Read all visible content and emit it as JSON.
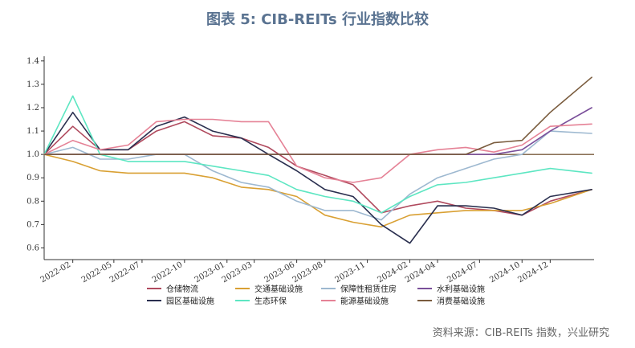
{
  "title": "图表 5:  CIB-REITs 行业指数比较",
  "source": "资料来源：CIB-REITs 指数，兴业研究",
  "chart_data": {
    "type": "line",
    "title": "图表 5:  CIB-REITs 行业指数比较",
    "xlabel": "",
    "ylabel": "",
    "ylim": [
      0.55,
      1.42
    ],
    "yticks": [
      "0.6",
      "0.7",
      "0.8",
      "0.9",
      "1.0",
      "1.1",
      "1.2",
      "1.3",
      "1.4"
    ],
    "xlim": [
      "2021-12-01",
      "2025-03-06"
    ],
    "xticks": [
      "2022-02",
      "2022-05",
      "2022-07",
      "2022-10",
      "2023-01",
      "2023-03",
      "2023-06",
      "2023-08",
      "2023-11",
      "2024-02",
      "2024-04",
      "2024-07",
      "2024-10",
      "2024-12"
    ],
    "grid": false,
    "legend_position": "bottom",
    "x": [
      "2021-12-01",
      "2022-02-01",
      "2022-04-01",
      "2022-06-01",
      "2022-08-01",
      "2022-10-01",
      "2022-12-01",
      "2023-02-01",
      "2023-04-01",
      "2023-06-01",
      "2023-08-01",
      "2023-10-01",
      "2023-12-01",
      "2024-02-01",
      "2024-04-01",
      "2024-06-01",
      "2024-08-01",
      "2024-10-01",
      "2024-12-01",
      "2025-03-01"
    ],
    "series": [
      {
        "name": "仓储物流",
        "color": "#b04a5e",
        "values": [
          1.0,
          1.12,
          1.02,
          1.02,
          1.1,
          1.14,
          1.08,
          1.07,
          1.03,
          0.95,
          0.91,
          0.87,
          0.75,
          0.78,
          0.8,
          0.77,
          0.76,
          0.74,
          0.8,
          0.85
        ]
      },
      {
        "name": "交通基础设施",
        "color": "#d9a033",
        "values": [
          1.0,
          0.97,
          0.93,
          0.92,
          0.92,
          0.92,
          0.9,
          0.86,
          0.85,
          0.82,
          0.74,
          0.71,
          0.69,
          0.74,
          0.75,
          0.76,
          0.76,
          0.76,
          0.79,
          0.85
        ]
      },
      {
        "name": "保障性租赁住房",
        "color": "#9db8d0",
        "values": [
          1.0,
          1.03,
          0.98,
          0.98,
          1.0,
          1.0,
          0.93,
          0.88,
          0.86,
          0.8,
          0.76,
          0.76,
          0.72,
          0.83,
          0.9,
          0.94,
          0.98,
          1.0,
          1.1,
          1.09
        ]
      },
      {
        "name": "水利基础设施",
        "color": "#7a4f9a",
        "values": [
          1.0,
          1.0,
          1.0,
          1.0,
          1.0,
          1.0,
          1.0,
          1.0,
          1.0,
          1.0,
          1.0,
          1.0,
          1.0,
          1.0,
          1.0,
          1.0,
          1.0,
          1.02,
          1.1,
          1.2
        ]
      },
      {
        "name": "园区基础设施",
        "color": "#2a2f4f",
        "values": [
          1.0,
          1.18,
          1.02,
          1.02,
          1.12,
          1.16,
          1.1,
          1.07,
          1.0,
          0.93,
          0.85,
          0.82,
          0.7,
          0.62,
          0.78,
          0.78,
          0.77,
          0.74,
          0.82,
          0.85
        ]
      },
      {
        "name": "生态环保",
        "color": "#5de6c2",
        "values": [
          1.0,
          1.25,
          1.0,
          0.97,
          0.97,
          0.97,
          0.95,
          0.93,
          0.91,
          0.85,
          0.82,
          0.8,
          0.75,
          0.82,
          0.87,
          0.88,
          0.9,
          0.92,
          0.94,
          0.92
        ]
      },
      {
        "name": "能源基础设施",
        "color": "#e58296",
        "values": [
          1.0,
          1.06,
          1.02,
          1.04,
          1.14,
          1.15,
          1.15,
          1.14,
          1.14,
          0.95,
          0.9,
          0.88,
          0.9,
          1.0,
          1.02,
          1.03,
          1.01,
          1.04,
          1.12,
          1.13
        ]
      },
      {
        "name": "消费基础设施",
        "color": "#7a5c3e",
        "values": [
          1.0,
          1.0,
          1.0,
          1.0,
          1.0,
          1.0,
          1.0,
          1.0,
          1.0,
          1.0,
          1.0,
          1.0,
          1.0,
          1.0,
          1.0,
          1.0,
          1.05,
          1.06,
          1.18,
          1.33
        ]
      }
    ]
  }
}
